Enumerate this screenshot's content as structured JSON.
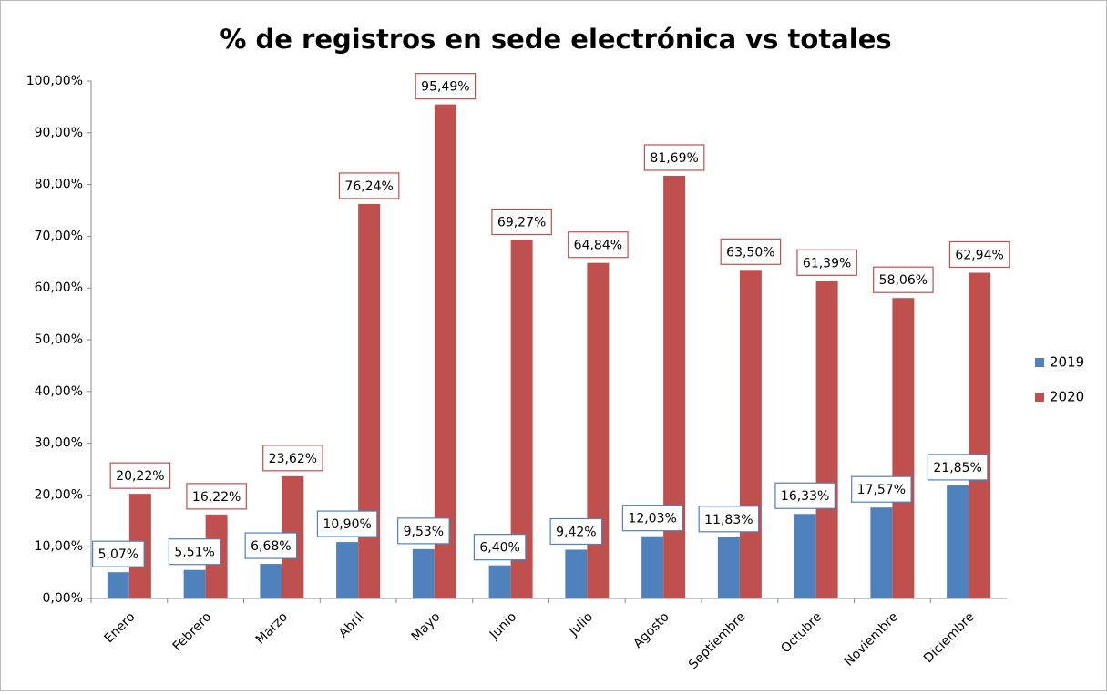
{
  "chart_data": {
    "type": "bar",
    "title": "% de registros en sede electrónica vs totales",
    "categories": [
      "Enero",
      "Febrero",
      "Marzo",
      "Abril",
      "Mayo",
      "Junio",
      "Julio",
      "Agosto",
      "Septiembre",
      "Octubre",
      "Noviembre",
      "Diciembre"
    ],
    "series": [
      {
        "name": "2019",
        "color": "#4f81bd",
        "values": [
          5.07,
          5.51,
          6.68,
          10.9,
          9.53,
          6.4,
          9.42,
          12.03,
          11.83,
          16.33,
          17.57,
          21.85
        ],
        "value_labels": [
          "5,07%",
          "5,51%",
          "6,68%",
          "10,90%",
          "9,53%",
          "6,40%",
          "9,42%",
          "12,03%",
          "11,83%",
          "16,33%",
          "17,57%",
          "21,85%"
        ]
      },
      {
        "name": "2020",
        "color": "#c0504d",
        "values": [
          20.22,
          16.22,
          23.62,
          76.24,
          95.49,
          69.27,
          64.84,
          81.69,
          63.5,
          61.39,
          58.06,
          62.94
        ],
        "value_labels": [
          "20,22%",
          "16,22%",
          "23,62%",
          "76,24%",
          "95,49%",
          "69,27%",
          "64,84%",
          "81,69%",
          "63,50%",
          "61,39%",
          "58,06%",
          "62,94%"
        ]
      }
    ],
    "ylim": [
      0,
      100
    ],
    "yticks": [
      {
        "value": 0,
        "label": "0,00%"
      },
      {
        "value": 10,
        "label": "10,00%"
      },
      {
        "value": 20,
        "label": "20,00%"
      },
      {
        "value": 30,
        "label": "30,00%"
      },
      {
        "value": 40,
        "label": "40,00%"
      },
      {
        "value": 50,
        "label": "50,00%"
      },
      {
        "value": 60,
        "label": "60,00%"
      },
      {
        "value": 70,
        "label": "70,00%"
      },
      {
        "value": 80,
        "label": "80,00%"
      },
      {
        "value": 90,
        "label": "90,00%"
      },
      {
        "value": 100,
        "label": "100,00%"
      }
    ],
    "grid": false,
    "legend": "right"
  }
}
